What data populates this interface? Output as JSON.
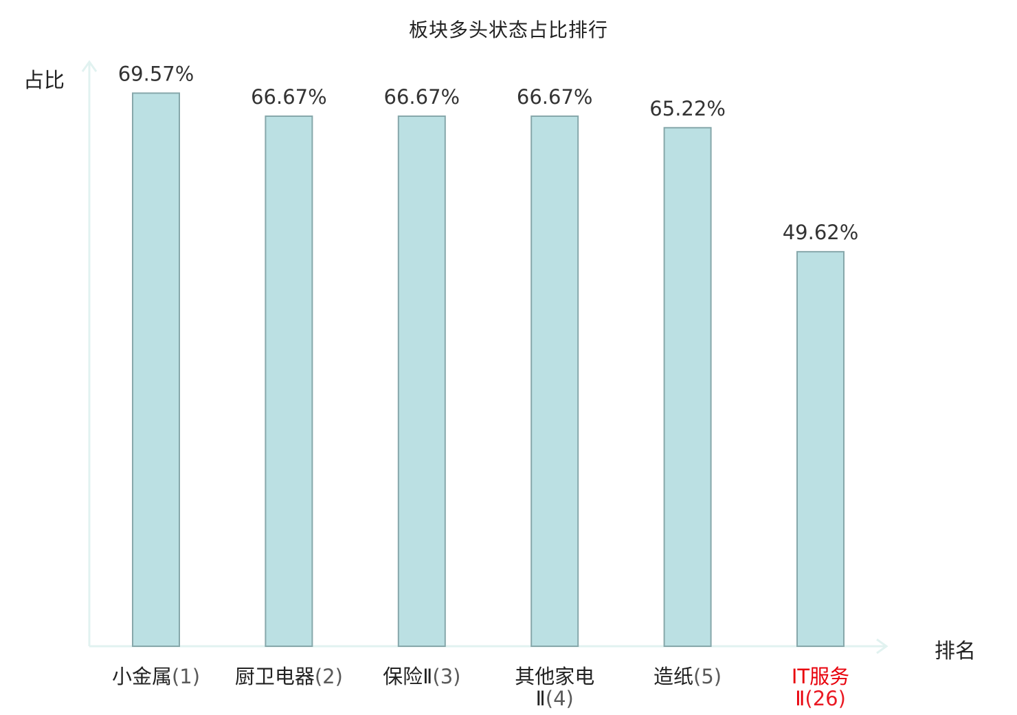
{
  "chart_data": {
    "type": "bar",
    "title": "板块多头状态占比排行",
    "xlabel": "排名",
    "ylabel": "占比",
    "ylim": [
      0,
      73.5
    ],
    "grid": false,
    "legend": "none",
    "categories": [
      [
        "小金属(1)"
      ],
      [
        "厨卫电器(2)"
      ],
      [
        "保险Ⅱ(3)"
      ],
      [
        "其他家电",
        "Ⅱ(4)"
      ],
      [
        "造纸(5)"
      ],
      [
        "IT服务",
        "Ⅱ(26)"
      ]
    ],
    "values": [
      69.57,
      66.67,
      66.67,
      66.67,
      65.22,
      49.62
    ],
    "value_labels": [
      "69.57%",
      "66.67%",
      "66.67%",
      "66.67%",
      "65.22%",
      "49.62%"
    ],
    "highlight_index": 5,
    "colors": {
      "bar_fill": "#bbe0e3",
      "bar_stroke": "#86a7aa",
      "axis": "#e1f2f0",
      "label": "#222222",
      "value_label": "#333333",
      "highlight": "#e8000b"
    }
  }
}
